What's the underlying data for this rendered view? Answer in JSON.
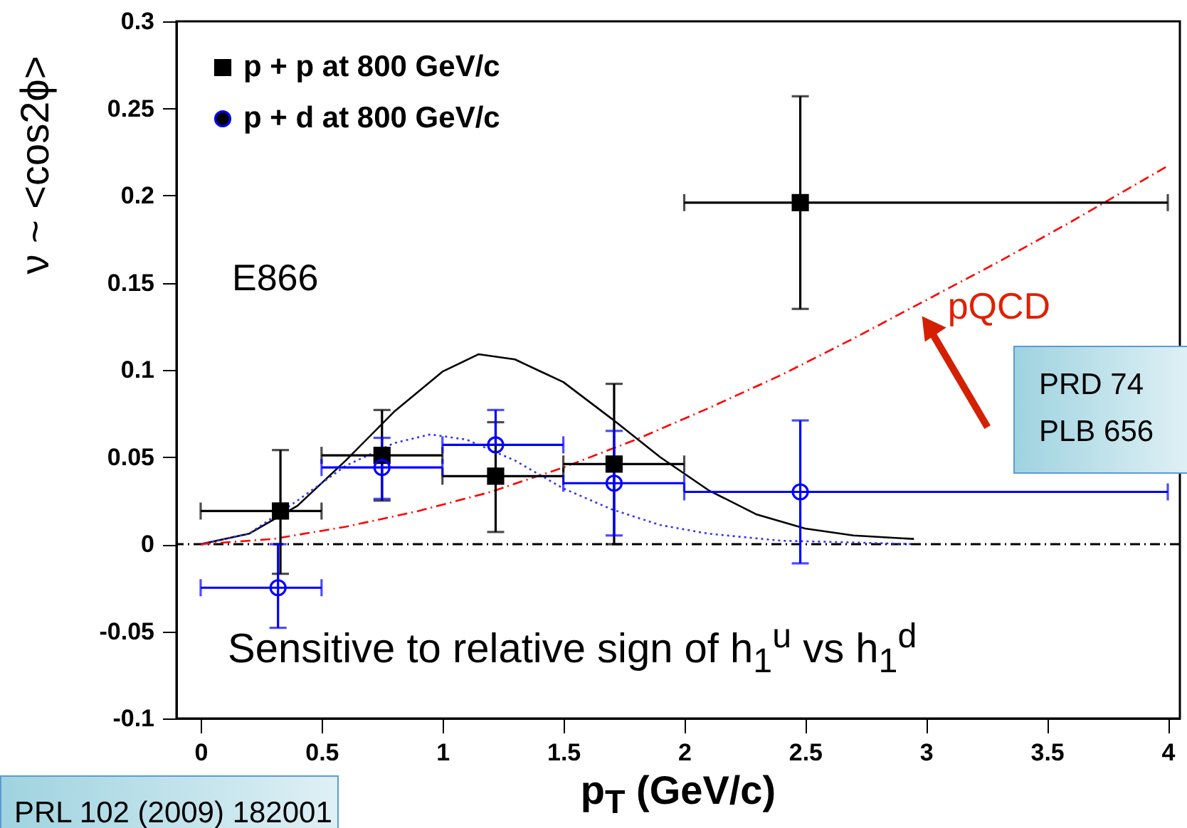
{
  "chart_data": {
    "type": "scatter",
    "xlabel": "p$_{T}$ (GeV/c)",
    "ylabel": "ν ~ <cos2ϕ>",
    "xlim": [
      -0.1,
      4.05
    ],
    "xticks": [
      0,
      0.5,
      1,
      1.5,
      2,
      2.5,
      3,
      3.5,
      4
    ],
    "ylim": [
      -0.1,
      0.3
    ],
    "yticks": [
      -0.1,
      -0.05,
      0,
      0.05,
      0.1,
      0.15,
      0.2,
      0.25,
      0.3
    ],
    "grid": false,
    "legend": "top left",
    "series": [
      {
        "type": "line",
        "color": "#000000",
        "line_style": "solid",
        "x": [
          0,
          0.2,
          0.4,
          0.6,
          0.8,
          1.0,
          1.15,
          1.3,
          1.5,
          1.7,
          1.9,
          2.1,
          2.3,
          2.5,
          2.7,
          2.95
        ],
        "values": [
          0,
          0.006,
          0.022,
          0.048,
          0.076,
          0.099,
          0.109,
          0.106,
          0.093,
          0.072,
          0.05,
          0.031,
          0.017,
          0.009,
          0.005,
          0.003
        ]
      },
      {
        "type": "line",
        "color": "#3333ff",
        "line_style": "dotted",
        "x": [
          0,
          0.2,
          0.4,
          0.6,
          0.8,
          0.95,
          1.1,
          1.3,
          1.5,
          1.7,
          1.9,
          2.1,
          2.4,
          2.7,
          2.95
        ],
        "values": [
          0,
          0.006,
          0.025,
          0.045,
          0.058,
          0.063,
          0.06,
          0.048,
          0.032,
          0.02,
          0.011,
          0.006,
          0.002,
          0.001,
          0
        ]
      },
      {
        "type": "line",
        "color": "#ff0000",
        "line_style": "dashed",
        "x": [
          0,
          0.3,
          0.6,
          0.9,
          1.2,
          1.5,
          1.8,
          2.1,
          2.4,
          2.7,
          3.0,
          3.3,
          3.6,
          4.0
        ],
        "values": [
          0,
          0.003,
          0.01,
          0.019,
          0.03,
          0.044,
          0.06,
          0.078,
          0.097,
          0.118,
          0.14,
          0.162,
          0.185,
          0.217
        ]
      },
      {
        "name": "p + p at 800 GeV/c",
        "color": "#000000",
        "marker": "square",
        "x": [
          0.33,
          0.75,
          1.22,
          1.71,
          2.48
        ],
        "values": [
          0.019,
          0.051,
          0.039,
          0.046,
          0.196
        ],
        "errors": [
          [
            -0.017,
            0.054
          ],
          [
            0.025,
            0.077
          ],
          [
            0.007,
            0.07
          ],
          [
            0.0,
            0.092
          ],
          [
            0.135,
            0.257
          ]
        ],
        "xerrors": [
          [
            0,
            0.5
          ],
          [
            0.5,
            1.0
          ],
          [
            1.0,
            1.5
          ],
          [
            1.5,
            2.0
          ],
          [
            2.0,
            4.0
          ]
        ]
      },
      {
        "name": "p + d at 800 GeV/c",
        "color": "#0000ff",
        "marker": "circle",
        "x": [
          0.32,
          0.75,
          1.22,
          1.71,
          2.48
        ],
        "values": [
          -0.025,
          0.044,
          0.057,
          0.035,
          0.03
        ],
        "errors": [
          [
            -0.048,
            0.0
          ],
          [
            0.026,
            0.061
          ],
          [
            0.057,
            0.077
          ],
          [
            0.005,
            0.065
          ],
          [
            -0.011,
            0.071
          ]
        ],
        "xerrors": [
          [
            0,
            0.5
          ],
          [
            0.5,
            1.0
          ],
          [
            1.0,
            1.5
          ],
          [
            1.5,
            2.0
          ],
          [
            2.0,
            4.0
          ]
        ]
      }
    ],
    "ref_lines": [
      {
        "axis": "y",
        "value": 0,
        "color": "#000000",
        "line_style": "dashed"
      }
    ],
    "annotations": [
      "E866",
      {
        "text": "pQCD",
        "x": 2.96,
        "y": 0.139
      },
      "PRD 74",
      "PLB 656",
      "PRL 102 (2009) 182001",
      "Sensitive to relative sign of h$_{1}$$^{u}$ vs h$_{1}$$^{d}$"
    ]
  }
}
